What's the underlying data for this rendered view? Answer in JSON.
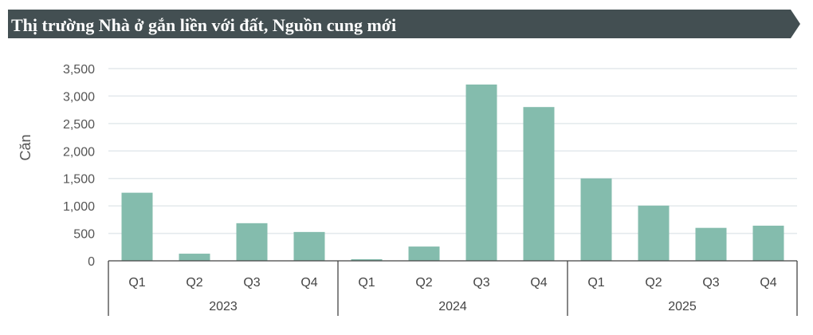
{
  "header": {
    "title": "Thị trường Nhà ở gắn liền với đất, Nguồn cung mới"
  },
  "colors": {
    "banner": "#434f52",
    "bar": "#84bcad",
    "grid": "#e3e9ec",
    "axis": "#444444"
  },
  "chart_data": {
    "type": "bar",
    "title": "Thị trường Nhà ở gắn liền với đất, Nguồn cung mới",
    "ylabel": "Căn",
    "xlabel": "",
    "ylim": [
      0,
      3500
    ],
    "yticks": [
      0,
      500,
      1000,
      1500,
      2000,
      2500,
      3000,
      3500
    ],
    "ytick_labels": [
      "0",
      "500",
      "1,000",
      "1,500",
      "2,000",
      "2,500",
      "3,000",
      "3,500"
    ],
    "grid": true,
    "groups": [
      {
        "label": "2023",
        "categories": [
          "Q1",
          "Q2",
          "Q3",
          "Q4"
        ],
        "values": [
          1240,
          130,
          685,
          525
        ]
      },
      {
        "label": "2024",
        "categories": [
          "Q1",
          "Q2",
          "Q3",
          "Q4"
        ],
        "values": [
          30,
          260,
          3210,
          2800
        ]
      },
      {
        "label": "2025",
        "categories": [
          "Q1",
          "Q2",
          "Q3",
          "Q4"
        ],
        "values": [
          1500,
          1005,
          600,
          640
        ]
      }
    ]
  }
}
